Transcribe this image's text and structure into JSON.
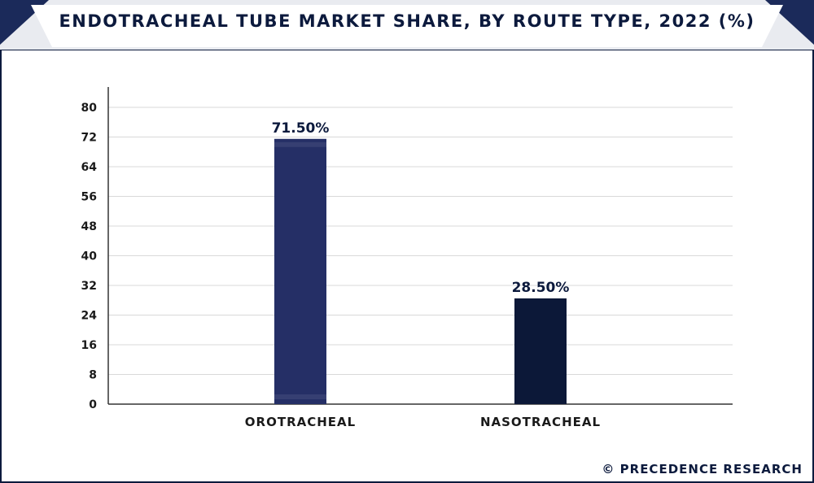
{
  "colors": {
    "navy": "#0c1a3d",
    "bar_primary": "#252f66",
    "bar_secondary": "#0c1838",
    "grid": "#d9d9d9",
    "header_band": "#ffffff",
    "header_corner": "#1b2a5a"
  },
  "header": {
    "title": "ENDOTRACHEAL TUBE MARKET SHARE, BY ROUTE TYPE, 2022 (%)"
  },
  "footer": {
    "source": "© PRECEDENCE RESEARCH"
  },
  "chart_data": {
    "type": "bar",
    "title": "ENDOTRACHEAL TUBE MARKET SHARE, BY ROUTE TYPE, 2022 (%)",
    "categories": [
      "OROTRACHEAL",
      "NASOTRACHEAL"
    ],
    "values": [
      71.5,
      28.5
    ],
    "data_labels": [
      "71.50%",
      "28.50%"
    ],
    "bar_colors": [
      "#252f66",
      "#0c1838"
    ],
    "xlabel": "",
    "ylabel": "",
    "ylim": [
      0,
      80
    ],
    "yticks": [
      0,
      8,
      16,
      24,
      32,
      40,
      48,
      56,
      64,
      72,
      80
    ],
    "grid": true,
    "legend": "none"
  }
}
